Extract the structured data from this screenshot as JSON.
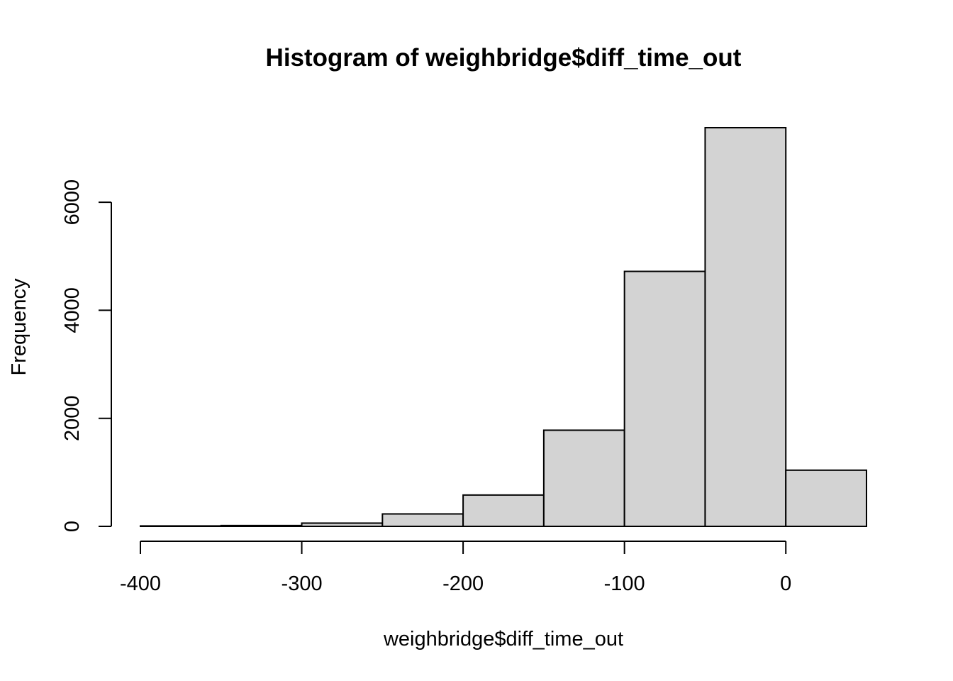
{
  "chart_data": {
    "type": "bar",
    "title": "Histogram of weighbridge$diff_time_out",
    "xlabel": "weighbridge$diff_time_out",
    "ylabel": "Frequency",
    "bins": [
      {
        "start": -400,
        "end": -350,
        "count": 8
      },
      {
        "start": -350,
        "end": -300,
        "count": 15
      },
      {
        "start": -300,
        "end": -250,
        "count": 60
      },
      {
        "start": -250,
        "end": -200,
        "count": 230
      },
      {
        "start": -200,
        "end": -150,
        "count": 580
      },
      {
        "start": -150,
        "end": -100,
        "count": 1780
      },
      {
        "start": -100,
        "end": -50,
        "count": 4720
      },
      {
        "start": -50,
        "end": 0,
        "count": 7380
      },
      {
        "start": 0,
        "end": 50,
        "count": 1040
      }
    ],
    "xlim": [
      -400,
      50
    ],
    "ylim": [
      0,
      7380
    ],
    "x_ticks": [
      -400,
      -300,
      -200,
      -100,
      0
    ],
    "x_tick_labels": [
      "-400",
      "-300",
      "-200",
      "-100",
      "0"
    ],
    "y_ticks": [
      0,
      2000,
      4000,
      6000
    ],
    "y_tick_labels": [
      "0",
      "2000",
      "4000",
      "6000"
    ],
    "bar_fill": "#d3d3d3",
    "bar_stroke": "#000000",
    "grid": false,
    "legend": "none"
  }
}
